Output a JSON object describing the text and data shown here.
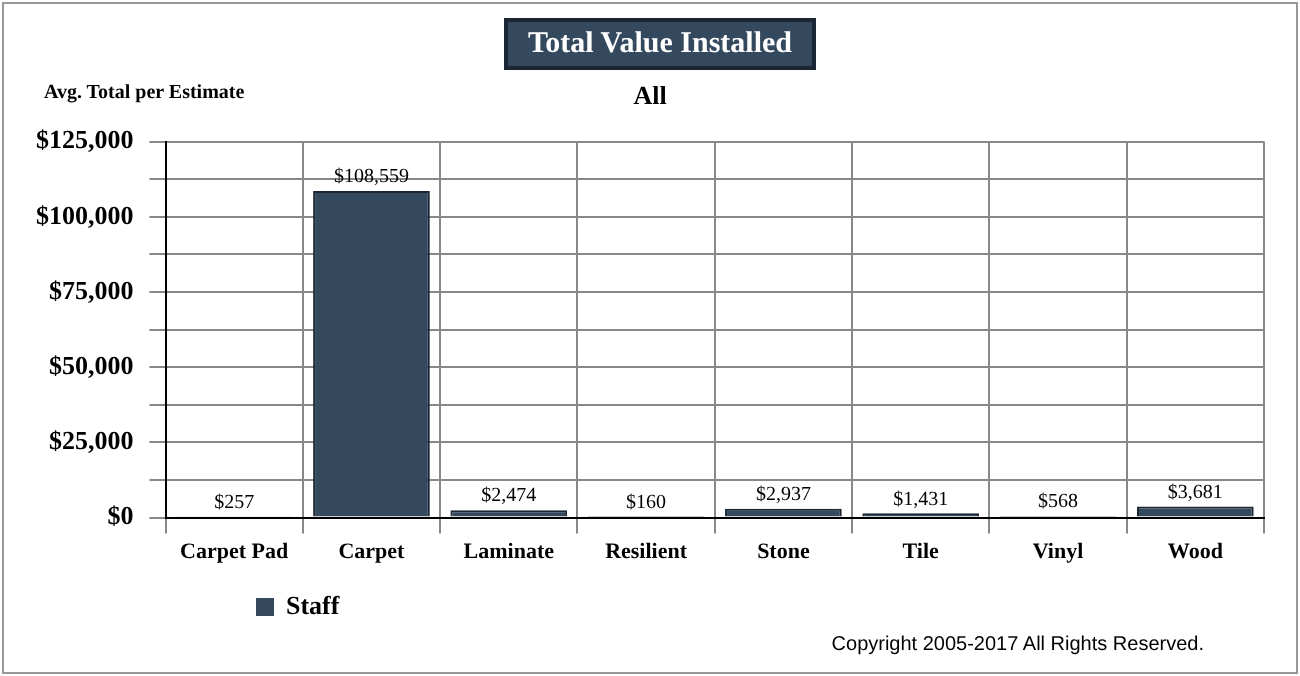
{
  "chart_data": {
    "type": "bar",
    "title": "Total Value Installed",
    "subtitle": "All",
    "ylabel": "Avg. Total per Estimate",
    "categories": [
      "Carpet Pad",
      "Carpet",
      "Laminate",
      "Resilient",
      "Stone",
      "Tile",
      "Vinyl",
      "Wood"
    ],
    "series": [
      {
        "name": "Staff",
        "color": "#34495e",
        "values": [
          257,
          108559,
          2474,
          160,
          2937,
          1431,
          568,
          3681
        ],
        "value_labels": [
          "$257",
          "$108,559",
          "$2,474",
          "$160",
          "$2,937",
          "$1,431",
          "$568",
          "$3,681"
        ]
      }
    ],
    "ylim": [
      0,
      125000
    ],
    "yticks": [
      {
        "value": 0,
        "label": "$0"
      },
      {
        "value": 12500,
        "label": null
      },
      {
        "value": 25000,
        "label": "$25,000"
      },
      {
        "value": 37500,
        "label": null
      },
      {
        "value": 50000,
        "label": "$50,000"
      },
      {
        "value": 62500,
        "label": null
      },
      {
        "value": 75000,
        "label": "$75,000"
      },
      {
        "value": 87500,
        "label": null
      },
      {
        "value": 100000,
        "label": "$100,000"
      },
      {
        "value": 112500,
        "label": null
      },
      {
        "value": 125000,
        "label": "$125,000"
      }
    ],
    "grid": true,
    "legend": "bottom left",
    "annotations": [
      "Copyright 2005-2017 All Rights Reserved."
    ]
  }
}
